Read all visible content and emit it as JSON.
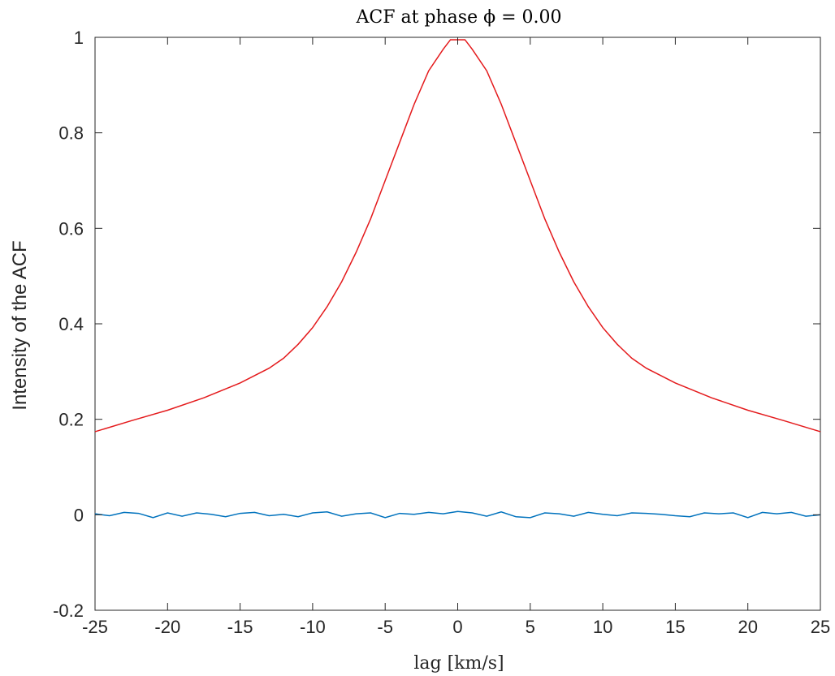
{
  "chart_data": {
    "type": "line",
    "title": "ACF at phase ϕ = 0.00",
    "xlabel": "lag [km/s]",
    "ylabel": "Intensity of the ACF",
    "xlim": [
      -25,
      25
    ],
    "ylim": [
      -0.2,
      1.0
    ],
    "xticks": [
      -25,
      -20,
      -15,
      -10,
      -5,
      0,
      5,
      10,
      15,
      20,
      25
    ],
    "yticks": [
      -0.2,
      0,
      0.2,
      0.4,
      0.6,
      0.8,
      1
    ],
    "xtick_labels": [
      "-25",
      "-20",
      "-15",
      "-10",
      "-5",
      "0",
      "5",
      "10",
      "15",
      "20",
      "25"
    ],
    "ytick_labels": [
      "-0.2",
      "0",
      "0.2",
      "0.4",
      "0.6",
      "0.8",
      "1"
    ],
    "grid": false,
    "series": [
      {
        "color": "#e41a1c",
        "x": [
          -25,
          -22.5,
          -20,
          -17.5,
          -15,
          -13,
          -12,
          -11,
          -10,
          -9,
          -8,
          -7,
          -6,
          -5,
          -4,
          -3,
          -2,
          -1,
          -0.5,
          0,
          0.5,
          1,
          2,
          3,
          4,
          5,
          6,
          7,
          8,
          9,
          10,
          11,
          12,
          13,
          15,
          17.5,
          20,
          22.5,
          25
        ],
        "values": [
          0.174,
          0.197,
          0.219,
          0.245,
          0.276,
          0.307,
          0.328,
          0.357,
          0.392,
          0.436,
          0.488,
          0.55,
          0.62,
          0.7,
          0.78,
          0.86,
          0.93,
          0.975,
          0.995,
          0.995,
          0.995,
          0.975,
          0.93,
          0.86,
          0.78,
          0.7,
          0.62,
          0.55,
          0.488,
          0.436,
          0.392,
          0.357,
          0.328,
          0.307,
          0.276,
          0.245,
          0.219,
          0.197,
          0.174
        ]
      },
      {
        "color": "#0072bd",
        "x": [
          -25,
          -24,
          -23,
          -22,
          -21,
          -20,
          -19,
          -18,
          -17,
          -16,
          -15,
          -14,
          -13,
          -12,
          -11,
          -10,
          -9,
          -8,
          -7,
          -6,
          -5,
          -4,
          -3,
          -2,
          -1,
          0,
          1,
          2,
          3,
          4,
          5,
          6,
          7,
          8,
          9,
          10,
          11,
          12,
          13,
          14,
          15,
          16,
          17,
          18,
          19,
          20,
          21,
          22,
          23,
          24,
          25
        ],
        "values": [
          0.002,
          -0.002,
          0.005,
          0.003,
          -0.006,
          0.004,
          -0.003,
          0.004,
          0.001,
          -0.004,
          0.003,
          0.005,
          -0.002,
          0.001,
          -0.004,
          0.004,
          0.006,
          -0.003,
          0.002,
          0.004,
          -0.006,
          0.003,
          0.001,
          0.005,
          0.002,
          0.007,
          0.004,
          -0.003,
          0.006,
          -0.004,
          -0.006,
          0.004,
          0.002,
          -0.003,
          0.005,
          0.001,
          -0.002,
          0.004,
          0.003,
          0.001,
          -0.002,
          -0.004,
          0.004,
          0.002,
          0.004,
          -0.006,
          0.005,
          0.002,
          0.005,
          -0.003,
          0.0
        ]
      }
    ]
  }
}
